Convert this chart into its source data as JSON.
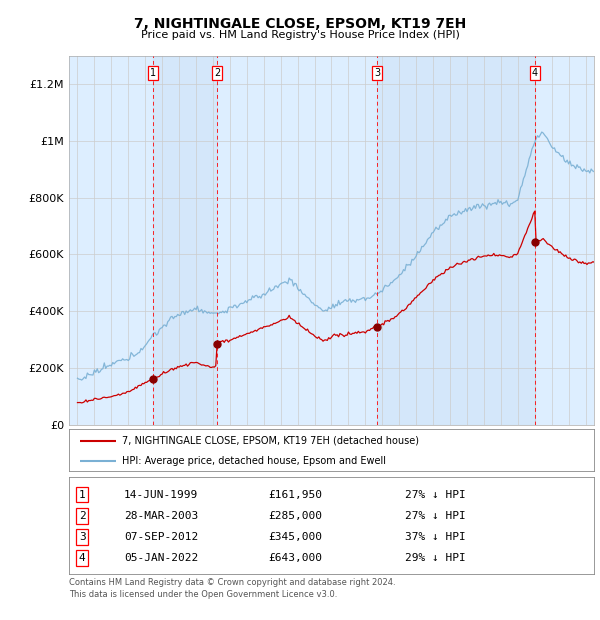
{
  "title": "7, NIGHTINGALE CLOSE, EPSOM, KT19 7EH",
  "subtitle": "Price paid vs. HM Land Registry's House Price Index (HPI)",
  "hpi_color": "#7ab0d4",
  "hpi_fill_color": "#daeaf5",
  "price_color": "#cc0000",
  "ylim": [
    0,
    1300000
  ],
  "yticks": [
    0,
    200000,
    400000,
    600000,
    800000,
    1000000,
    1200000
  ],
  "ytick_labels": [
    "£0",
    "£200K",
    "£400K",
    "£600K",
    "£800K",
    "£1M",
    "£1.2M"
  ],
  "xmin": 1994.5,
  "xmax": 2025.5,
  "sales": [
    {
      "num": 1,
      "year": 1999.45,
      "price": 161950,
      "label": "1"
    },
    {
      "num": 2,
      "year": 2003.24,
      "price": 285000,
      "label": "2"
    },
    {
      "num": 3,
      "year": 2012.68,
      "price": 345000,
      "label": "3"
    },
    {
      "num": 4,
      "year": 2022.01,
      "price": 643000,
      "label": "4"
    }
  ],
  "legend_line1": "7, NIGHTINGALE CLOSE, EPSOM, KT19 7EH (detached house)",
  "legend_line2": "HPI: Average price, detached house, Epsom and Ewell",
  "table_rows": [
    [
      "1",
      "14-JUN-1999",
      "£161,950",
      "27% ↓ HPI"
    ],
    [
      "2",
      "28-MAR-2003",
      "£285,000",
      "27% ↓ HPI"
    ],
    [
      "3",
      "07-SEP-2012",
      "£345,000",
      "37% ↓ HPI"
    ],
    [
      "4",
      "05-JAN-2022",
      "£643,000",
      "29% ↓ HPI"
    ]
  ],
  "footnote": "Contains HM Land Registry data © Crown copyright and database right 2024.\nThis data is licensed under the Open Government Licence v3.0."
}
